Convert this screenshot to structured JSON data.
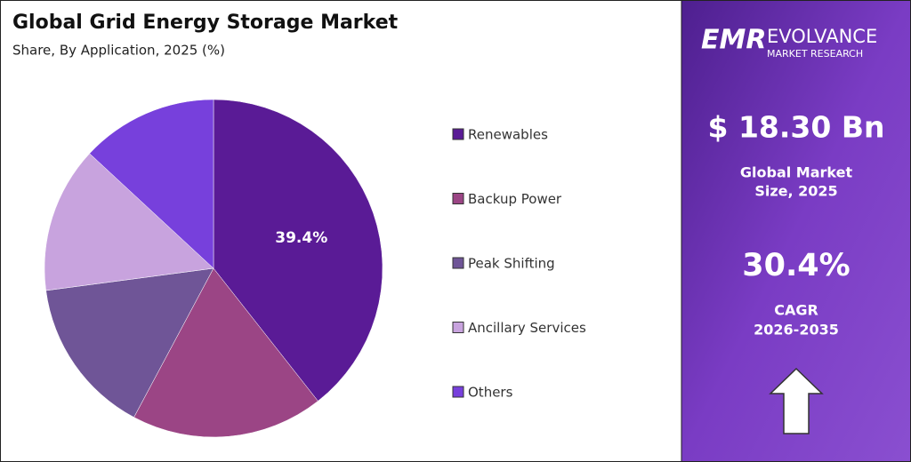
{
  "chart_data": {
    "type": "pie",
    "title": "Global Grid Energy Storage Market",
    "subtitle": "Share, By Application, 2025 (%)",
    "categories": [
      "Renewables",
      "Backup Power",
      "Peak Shifting",
      "Ancillary Services",
      "Others"
    ],
    "values": [
      39.4,
      18.4,
      15.1,
      14.0,
      13.1
    ],
    "value_labels": [
      "39.4%",
      null,
      null,
      null,
      null
    ],
    "colors": [
      "#5a1b96",
      "#9b4585",
      "#6f5597",
      "#c8a3de",
      "#7740dc"
    ],
    "legend": "right"
  },
  "panel": {
    "logo": "EMR",
    "brand": "EVOLVANCE",
    "brand_sub": "MARKET RESEARCH",
    "market_size": "$ 18.30 Bn",
    "market_size_label": [
      "Global Market",
      "Size, 2025"
    ],
    "cagr": "30.4%",
    "cagr_label": [
      "CAGR",
      "2026-2035"
    ]
  }
}
